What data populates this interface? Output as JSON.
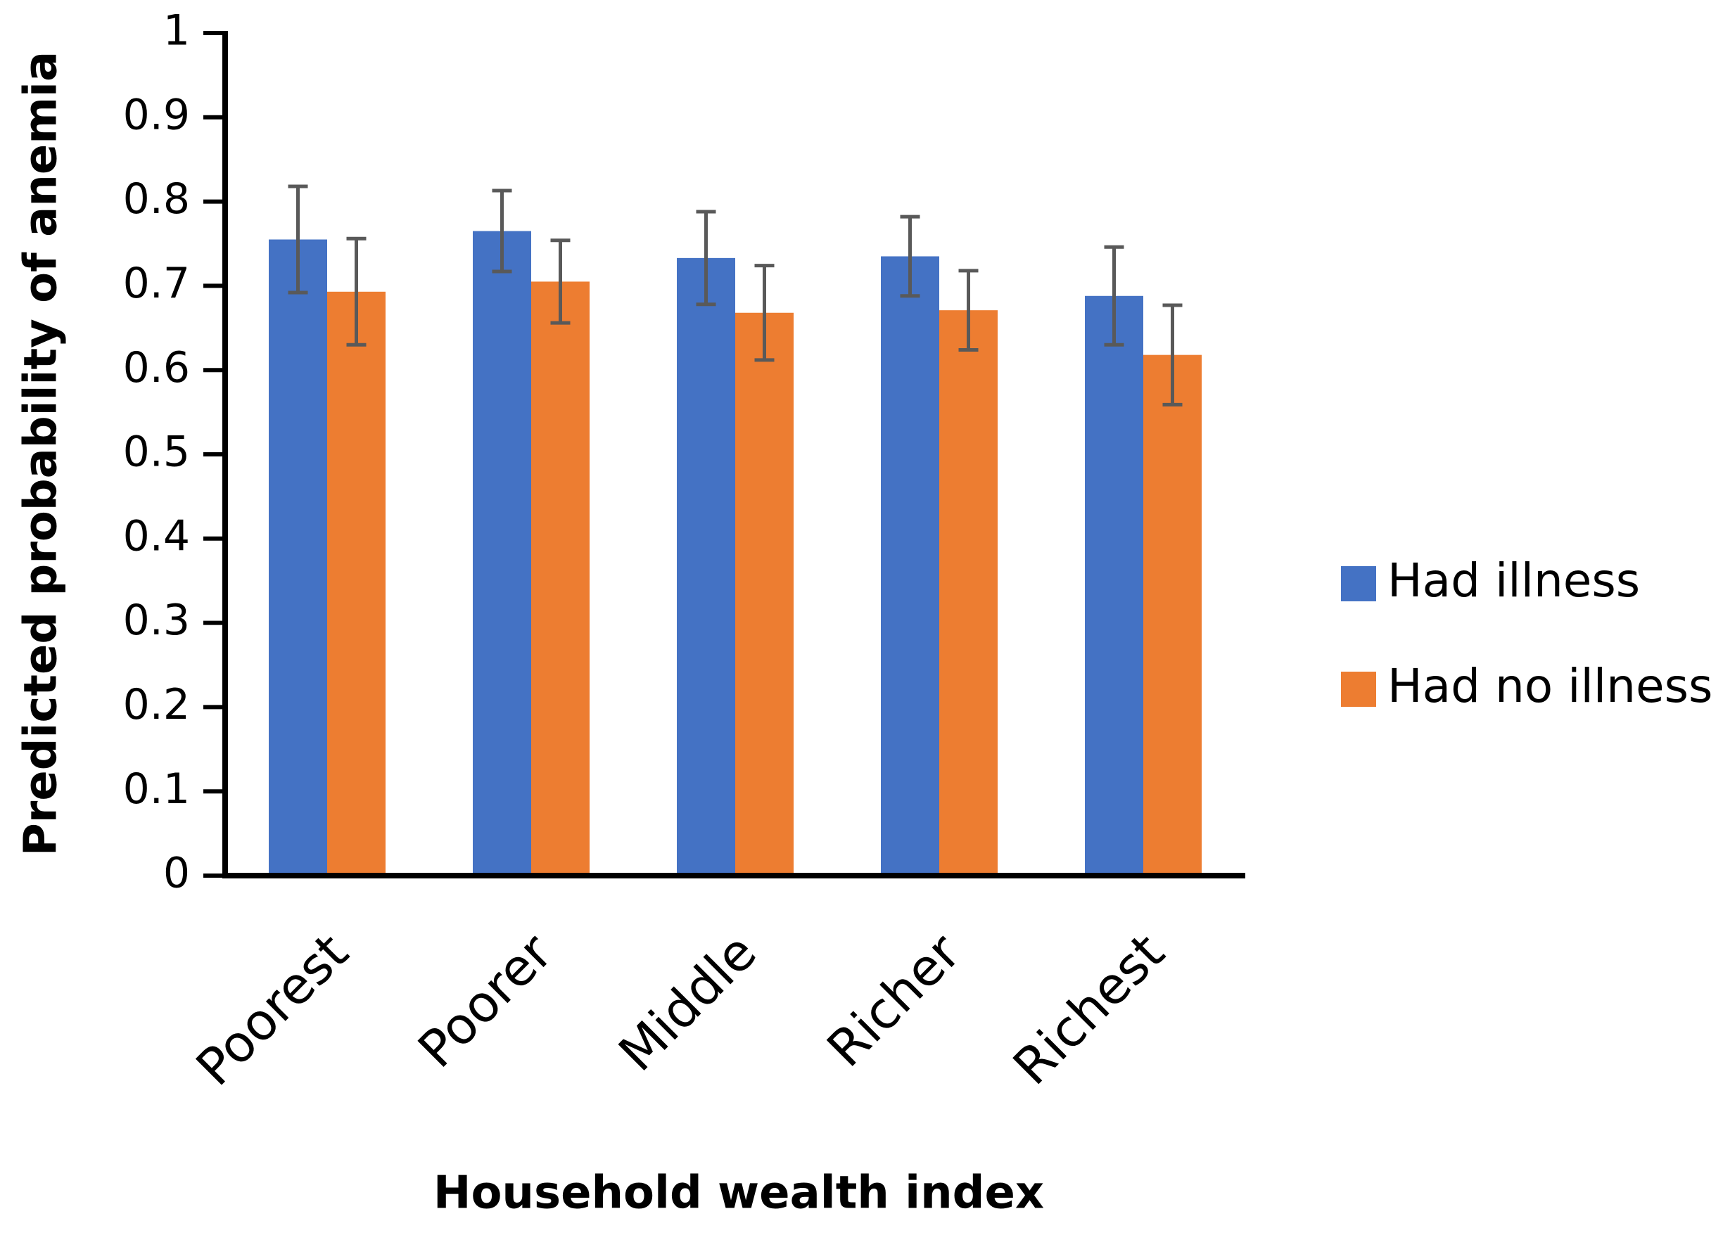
{
  "chart_data": {
    "type": "bar",
    "x_label": "Household wealth index",
    "y_label": "Predicted probability of anemia",
    "categories": [
      "Poorest",
      "Poorer",
      "Middle",
      "Richer",
      "Richest"
    ],
    "series": [
      {
        "name": "Had illness",
        "color": "#4472c4",
        "values": [
          0.755,
          0.765,
          0.733,
          0.735,
          0.688
        ],
        "errors": [
          0.063,
          0.048,
          0.055,
          0.047,
          0.058
        ]
      },
      {
        "name": "Had no illness",
        "color": "#ed7d31",
        "values": [
          0.693,
          0.705,
          0.668,
          0.671,
          0.618
        ],
        "errors": [
          0.063,
          0.049,
          0.056,
          0.047,
          0.059
        ]
      }
    ],
    "ylim": [
      0,
      1
    ],
    "yticks": [
      0,
      0.1,
      0.2,
      0.3,
      0.4,
      0.5,
      0.6,
      0.7,
      0.8,
      0.9,
      1
    ],
    "error_color": "#595959",
    "legend": "right"
  }
}
